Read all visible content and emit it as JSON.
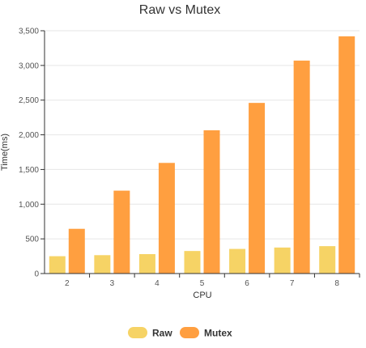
{
  "chart_data": {
    "type": "bar",
    "title": "Raw vs Mutex",
    "xlabel": "CPU",
    "ylabel": "Time(ms)",
    "categories": [
      "2",
      "3",
      "4",
      "5",
      "6",
      "7",
      "8"
    ],
    "ylim": [
      0,
      3500
    ],
    "yticks": [
      "0",
      "500",
      "1,000",
      "1,500",
      "2,000",
      "2,500",
      "3,000",
      "3,500"
    ],
    "grid": true,
    "legend_position": "bottom",
    "series": [
      {
        "name": "Raw",
        "color": "#f6d365",
        "values": [
          250,
          265,
          280,
          325,
          355,
          375,
          395
        ]
      },
      {
        "name": "Mutex",
        "color": "#ff9f40",
        "values": [
          645,
          1195,
          1595,
          2065,
          2460,
          3070,
          3420
        ]
      }
    ]
  }
}
